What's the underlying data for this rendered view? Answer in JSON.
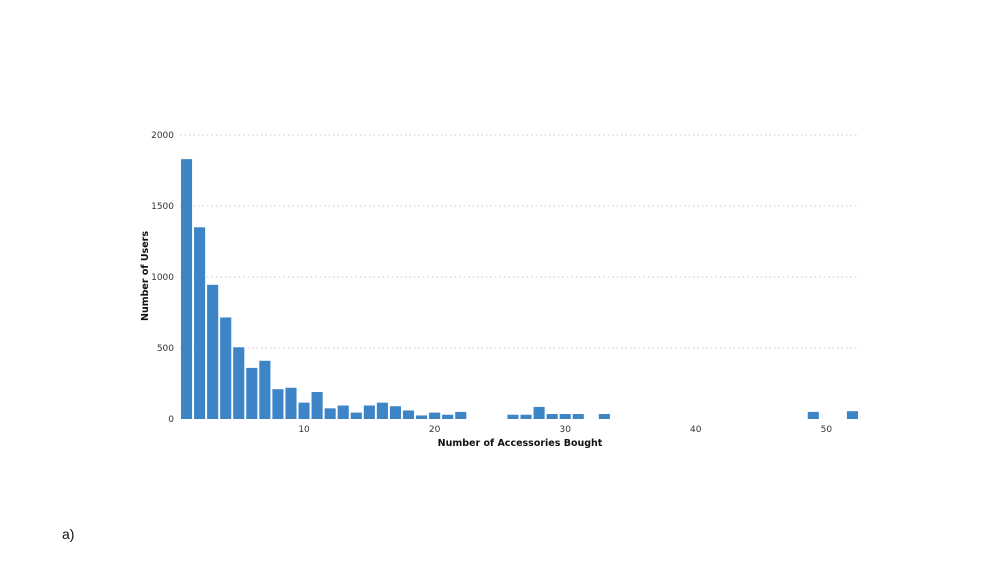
{
  "panel_label": "a)",
  "chart_data": {
    "type": "bar",
    "xlabel": "Number of Accessories Bought",
    "ylabel": "Number of Users",
    "x_ticks": [
      10,
      20,
      30,
      40,
      50
    ],
    "y_ticks": [
      0,
      500,
      1000,
      1500,
      2000
    ],
    "x_range": [
      0.5,
      52.5
    ],
    "ylim": [
      0,
      2000
    ],
    "grid": "horizontal dotted",
    "bar_color": "#3d85c6",
    "x": [
      1,
      2,
      3,
      4,
      5,
      6,
      7,
      8,
      9,
      10,
      11,
      12,
      13,
      14,
      15,
      16,
      17,
      18,
      19,
      20,
      21,
      22,
      26,
      27,
      28,
      29,
      30,
      31,
      33,
      49,
      52
    ],
    "values": [
      1830,
      1350,
      945,
      715,
      505,
      360,
      410,
      210,
      220,
      115,
      190,
      75,
      95,
      45,
      95,
      115,
      90,
      60,
      25,
      45,
      30,
      50,
      30,
      30,
      85,
      35,
      35,
      35,
      35,
      50,
      55
    ]
  }
}
